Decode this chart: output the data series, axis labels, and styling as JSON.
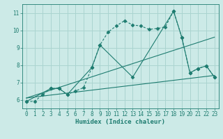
{
  "background_color": "#cceae7",
  "grid_color": "#aad4d0",
  "line_color": "#1e7c70",
  "xlabel": "Humidex (Indice chaleur)",
  "xlim": [
    -0.5,
    23.5
  ],
  "ylim": [
    5.5,
    11.5
  ],
  "yticks": [
    6,
    7,
    8,
    9,
    10,
    11
  ],
  "xticks": [
    0,
    1,
    2,
    3,
    4,
    5,
    6,
    7,
    8,
    9,
    10,
    11,
    12,
    13,
    14,
    15,
    16,
    17,
    18,
    19,
    20,
    21,
    22,
    23
  ],
  "series": [
    {
      "x": [
        0,
        1,
        2,
        3,
        4,
        5,
        6,
        7,
        8,
        9,
        10,
        11,
        12,
        13,
        14,
        15,
        16,
        17,
        18,
        19,
        20,
        21,
        22,
        23
      ],
      "y": [
        5.9,
        5.9,
        6.3,
        6.65,
        6.65,
        6.3,
        6.5,
        6.7,
        7.85,
        9.15,
        9.9,
        10.25,
        10.55,
        10.3,
        10.25,
        10.05,
        10.1,
        10.2,
        11.1,
        9.6,
        7.55,
        7.8,
        7.95,
        7.3
      ],
      "style": "dotted",
      "marker": "D",
      "markersize": 2.5
    },
    {
      "x": [
        0,
        3,
        4,
        5,
        8,
        9,
        13,
        18,
        19,
        20,
        21,
        22,
        23
      ],
      "y": [
        5.9,
        6.65,
        6.65,
        6.3,
        7.85,
        9.15,
        7.3,
        11.1,
        9.6,
        7.55,
        7.8,
        7.95,
        7.3
      ],
      "style": "solid",
      "marker": "D",
      "markersize": 2.5
    },
    {
      "x": [
        0,
        23
      ],
      "y": [
        6.1,
        9.6
      ],
      "style": "solid",
      "marker": null,
      "markersize": 0
    },
    {
      "x": [
        0,
        23
      ],
      "y": [
        6.1,
        7.4
      ],
      "style": "solid",
      "marker": null,
      "markersize": 0
    }
  ]
}
